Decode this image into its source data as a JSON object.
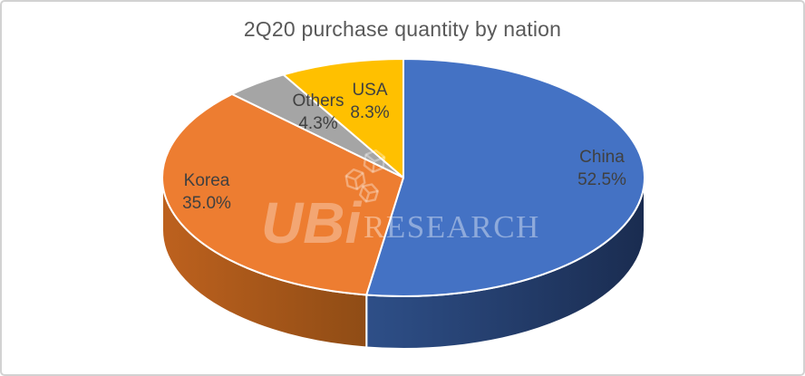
{
  "frame": {
    "background": "#FFFFFF",
    "border_color": "#D2D2D2"
  },
  "chart_data": {
    "type": "pie",
    "style": "3d",
    "title": "2Q20 purchase quantity by nation",
    "title_color": "#595959",
    "labels_color": "#404040",
    "start_angle_deg": 0,
    "direction": "clockwise",
    "legend": "none",
    "slices": [
      {
        "label": "China",
        "value": 52.5,
        "pct_label": "52.5%",
        "color": "#4472C4",
        "side_light": "#2E4F88",
        "side_dark": "#1A2C50"
      },
      {
        "label": "Korea",
        "value": 35.0,
        "pct_label": "35.0%",
        "color": "#ED7D31",
        "side_light": "#BD611E",
        "side_dark": "#8F4C15"
      },
      {
        "label": "Others",
        "value": 4.3,
        "pct_label": "4.3%",
        "color": "#A5A5A5",
        "side_light": "#7F7F7F",
        "side_dark": "#6B6B6B"
      },
      {
        "label": "USA",
        "value": 8.3,
        "pct_label": "8.3%",
        "color": "#FFC000",
        "side_light": "#BF9000",
        "side_dark": "#7F6000"
      }
    ]
  },
  "watermark": {
    "logo_text": "UBi",
    "text": "RESEARCH",
    "icon": "cube-cluster-icon",
    "color": "#FFFFFF"
  }
}
